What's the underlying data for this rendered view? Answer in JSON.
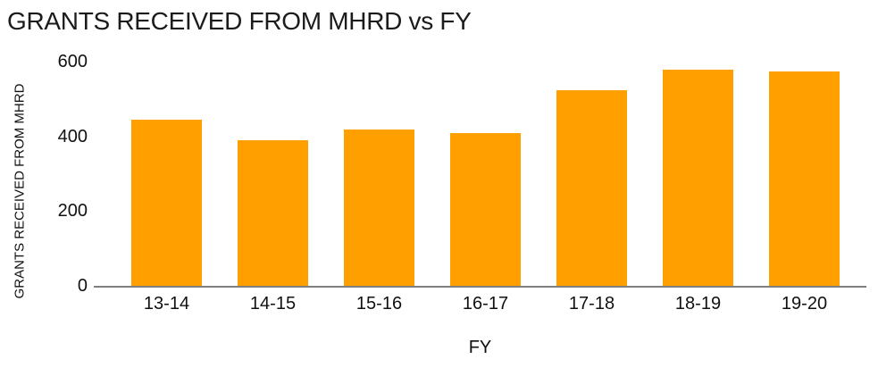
{
  "title": "GRANTS RECEIVED FROM MHRD vs FY",
  "colors": {
    "bar": "#ffa000",
    "axis_line": "#7f7f7f",
    "text": "#1a1a1a",
    "background": "#ffffff"
  },
  "chart_data": {
    "type": "bar",
    "title": "GRANTS RECEIVED FROM MHRD vs FY",
    "categories": [
      "13-14",
      "14-15",
      "15-16",
      "16-17",
      "17-18",
      "18-19",
      "19-20"
    ],
    "values": [
      444,
      390,
      418,
      408,
      523,
      579,
      574
    ],
    "xlabel": "FY",
    "ylabel": "GRANTS RECEIVED FROM MHRD",
    "ylim": [
      0,
      600
    ],
    "yticks": [
      0,
      200,
      400,
      600
    ],
    "grid": false,
    "legend": "none",
    "bar_color": "#ffa000"
  }
}
